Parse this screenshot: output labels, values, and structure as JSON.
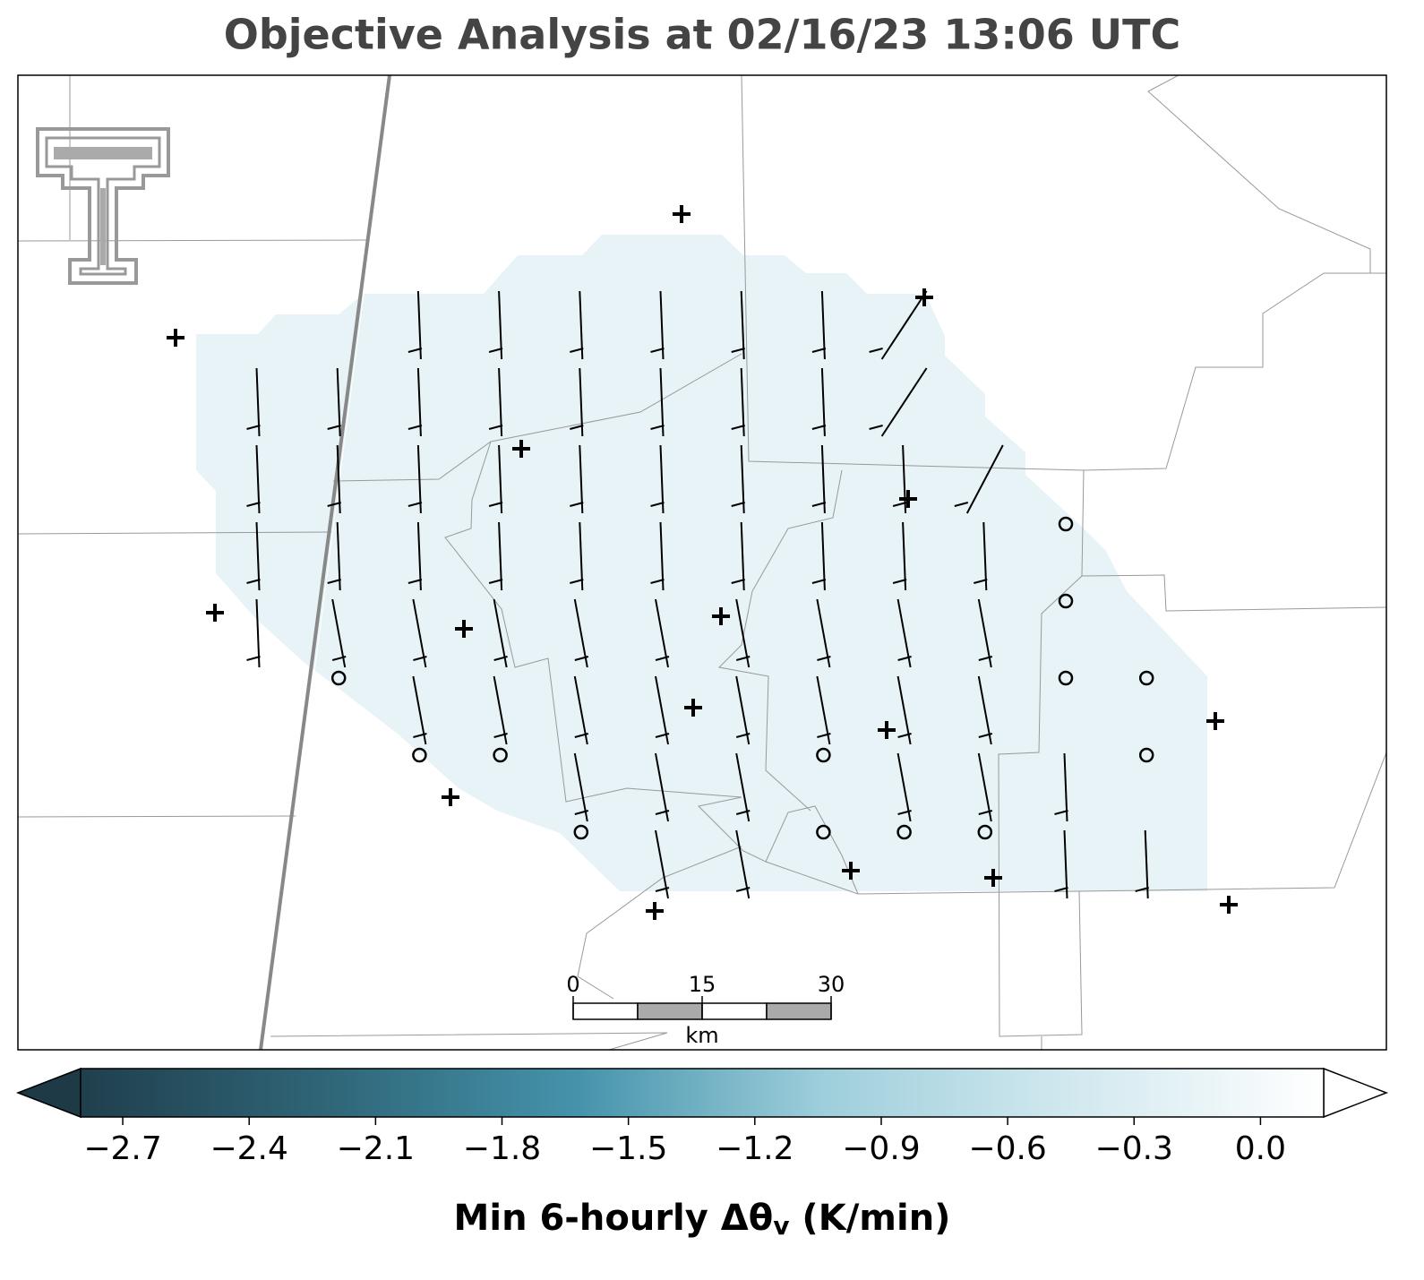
{
  "title": "Objective Analysis at 02/16/23 13:06 UTC",
  "colorbar": {
    "label_parts": [
      "Min 6-hourly Δθ",
      "v",
      " (K/min)"
    ],
    "clim": [
      -2.8,
      0.15
    ],
    "colors": [
      "#203f4d",
      "#2f6678",
      "#4593ab",
      "#9fcfdc",
      "#d2e9ef",
      "#ffffff"
    ],
    "extend_colors": [
      "#1e3a47",
      "#ffffff"
    ],
    "ticks": [
      {
        "value": -2.7,
        "label": "−2.7"
      },
      {
        "value": -2.4,
        "label": "−2.4"
      },
      {
        "value": -2.1,
        "label": "−2.1"
      },
      {
        "value": -1.8,
        "label": "−1.8"
      },
      {
        "value": -1.5,
        "label": "−1.5"
      },
      {
        "value": -1.2,
        "label": "−1.2"
      },
      {
        "value": -0.9,
        "label": "−0.9"
      },
      {
        "value": -0.6,
        "label": "−0.6"
      },
      {
        "value": -0.3,
        "label": "−0.3"
      },
      {
        "value": 0,
        "label": "0.0"
      }
    ]
  },
  "scale_bar": {
    "ticks": [
      0,
      15,
      30
    ],
    "unit": "km"
  }
}
